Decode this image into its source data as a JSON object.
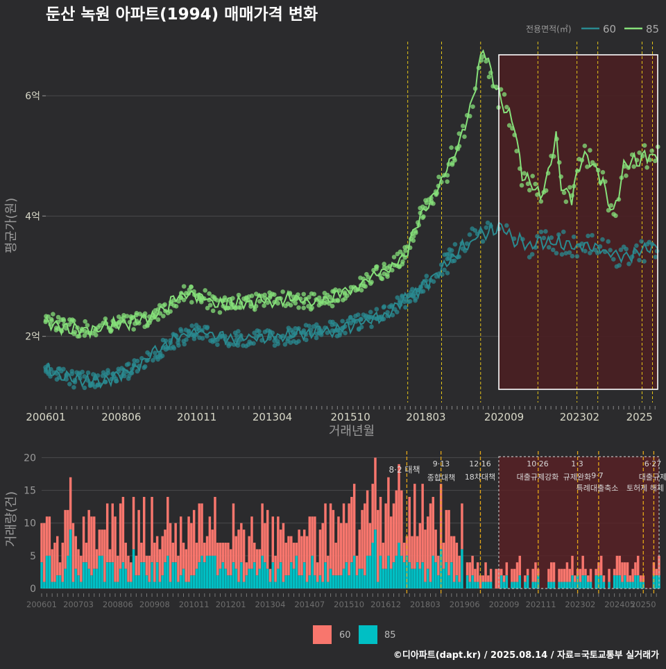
{
  "title": "둔산 녹원 아파트(1994) 매매가격 변화",
  "legend_top": {
    "title": "전용면적(㎡)",
    "items": [
      "60",
      "85"
    ]
  },
  "legend_bottom": {
    "items": [
      "60",
      "85"
    ]
  },
  "caption": "©디아파트(dapt.kr) / 2025.08.14 / 자료=국토교통부 실거래가",
  "colors": {
    "bg": "#2b2b2d",
    "line60": "#2a8a90",
    "line85": "#86e07a",
    "bar60": "#f8766d",
    "bar85": "#00bfc4",
    "highlight_fill": "#4a1f22",
    "policy_line": "#e6c619",
    "grid": "#4a4a4c",
    "text": "#d8d8c8"
  },
  "chart_data": [
    {
      "type": "line",
      "panel": "price",
      "xlabel": "거래년월",
      "ylabel": "평균가(원)",
      "ylim_eok": [
        0.9,
        6.9
      ],
      "yticks": [
        {
          "value": 2,
          "label": "2억"
        },
        {
          "value": 4,
          "label": "4억"
        },
        {
          "value": 6,
          "label": "6억"
        }
      ],
      "xticks": [
        "200601",
        "200806",
        "201011",
        "201304",
        "201510",
        "201803",
        "202009",
        "202302",
        "2025"
      ],
      "grid": true,
      "legend_position": "top-right",
      "series": [
        {
          "name": "60",
          "anchors": [
            [
              0,
              1.45
            ],
            [
              6,
              1.35
            ],
            [
              12,
              1.28
            ],
            [
              18,
              1.26
            ],
            [
              24,
              1.3
            ],
            [
              30,
              1.38
            ],
            [
              36,
              1.55
            ],
            [
              42,
              1.72
            ],
            [
              48,
              1.9
            ],
            [
              54,
              2.02
            ],
            [
              60,
              2.08
            ],
            [
              66,
              2.0
            ],
            [
              72,
              1.95
            ],
            [
              78,
              1.98
            ],
            [
              84,
              2.0
            ],
            [
              90,
              1.98
            ],
            [
              96,
              2.02
            ],
            [
              102,
              2.08
            ],
            [
              108,
              2.1
            ],
            [
              114,
              2.15
            ],
            [
              120,
              2.22
            ],
            [
              126,
              2.3
            ],
            [
              132,
              2.42
            ],
            [
              138,
              2.6
            ],
            [
              144,
              2.8
            ],
            [
              150,
              3.05
            ],
            [
              156,
              3.3
            ],
            [
              162,
              3.55
            ],
            [
              168,
              3.7
            ],
            [
              174,
              3.8
            ],
            [
              180,
              3.6
            ],
            [
              186,
              3.5
            ],
            [
              192,
              3.6
            ],
            [
              198,
              3.55
            ],
            [
              204,
              3.5
            ],
            [
              210,
              3.5
            ],
            [
              216,
              3.4
            ],
            [
              222,
              3.3
            ],
            [
              228,
              3.4
            ],
            [
              234,
              3.5
            ]
          ]
        },
        {
          "name": "85",
          "anchors": [
            [
              0,
              2.28
            ],
            [
              6,
              2.18
            ],
            [
              12,
              2.12
            ],
            [
              18,
              2.12
            ],
            [
              24,
              2.18
            ],
            [
              30,
              2.22
            ],
            [
              36,
              2.25
            ],
            [
              42,
              2.35
            ],
            [
              48,
              2.55
            ],
            [
              54,
              2.72
            ],
            [
              60,
              2.65
            ],
            [
              66,
              2.5
            ],
            [
              72,
              2.55
            ],
            [
              78,
              2.55
            ],
            [
              84,
              2.6
            ],
            [
              90,
              2.62
            ],
            [
              96,
              2.6
            ],
            [
              102,
              2.58
            ],
            [
              108,
              2.6
            ],
            [
              114,
              2.72
            ],
            [
              120,
              2.85
            ],
            [
              126,
              3.0
            ],
            [
              132,
              3.12
            ],
            [
              138,
              3.35
            ],
            [
              144,
              4.0
            ],
            [
              150,
              4.4
            ],
            [
              156,
              4.95
            ],
            [
              162,
              5.6
            ],
            [
              168,
              6.75
            ],
            [
              174,
              6.0
            ],
            [
              180,
              5.5
            ],
            [
              183,
              4.7
            ],
            [
              186,
              4.55
            ],
            [
              190,
              4.3
            ],
            [
              192,
              4.6
            ],
            [
              196,
              5.3
            ],
            [
              198,
              4.5
            ],
            [
              202,
              4.3
            ],
            [
              206,
              5.0
            ],
            [
              210,
              4.9
            ],
            [
              214,
              4.55
            ],
            [
              218,
              4.0
            ],
            [
              222,
              4.8
            ],
            [
              230,
              5.0
            ]
          ]
        }
      ],
      "highlight_period": [
        "202007",
        "202508"
      ]
    },
    {
      "type": "bar",
      "panel": "volume",
      "ylabel": "거래량(건)",
      "ylim": [
        0,
        21
      ],
      "yticks": [
        0,
        5,
        10,
        15,
        20
      ],
      "xticks": [
        "200601",
        "200703",
        "200806",
        "200908",
        "201011",
        "201201",
        "201304",
        "201407",
        "201510",
        "201612",
        "201803",
        "201906",
        "202009",
        "202111",
        "202302",
        "202405",
        "20250"
      ],
      "stacked": true,
      "series_names": [
        "60",
        "85"
      ],
      "peaks": [
        [
          11,
          17,
          9
        ],
        [
          35,
          14,
          6
        ],
        [
          48,
          14,
          5
        ],
        [
          66,
          14,
          5
        ],
        [
          84,
          13,
          5
        ],
        [
          108,
          13,
          4
        ],
        [
          126,
          16,
          7
        ],
        [
          127,
          20,
          9
        ],
        [
          136,
          19,
          7
        ],
        [
          152,
          16,
          6
        ],
        [
          160,
          13,
          6
        ]
      ],
      "monthly_mean_60": [
        [
          0,
          5.5
        ],
        [
          24,
          5.8
        ],
        [
          48,
          6.0
        ],
        [
          72,
          5.5
        ],
        [
          96,
          5.5
        ],
        [
          120,
          6.5
        ],
        [
          144,
          8.0
        ],
        [
          156,
          6.0
        ],
        [
          160,
          2.0
        ],
        [
          240,
          2.0
        ]
      ],
      "monthly_mean_85": [
        [
          0,
          3.2
        ],
        [
          30,
          3.0
        ],
        [
          60,
          2.8
        ],
        [
          96,
          2.8
        ],
        [
          120,
          3.2
        ],
        [
          156,
          3.0
        ],
        [
          160,
          1.3
        ],
        [
          240,
          1.3
        ]
      ],
      "policy_events": [
        {
          "month": "201708",
          "date": "8·2",
          "label": "대책"
        },
        {
          "month": "201809",
          "date": "9·13",
          "label": "종합대책"
        },
        {
          "month": "201912",
          "date": "12·16",
          "label": "18차대책"
        },
        {
          "month": "202110",
          "date": "10·26",
          "label": "대출규제강화"
        },
        {
          "month": "202301",
          "date": "1·3",
          "label": "규제완화"
        },
        {
          "month": "202309",
          "date": "9·7",
          "label": "특례대출축소"
        },
        {
          "month": "202502",
          "date": "",
          "label": "토허제 해제"
        },
        {
          "month": "202506",
          "date": "6·27",
          "label": "대출규제"
        }
      ]
    }
  ]
}
